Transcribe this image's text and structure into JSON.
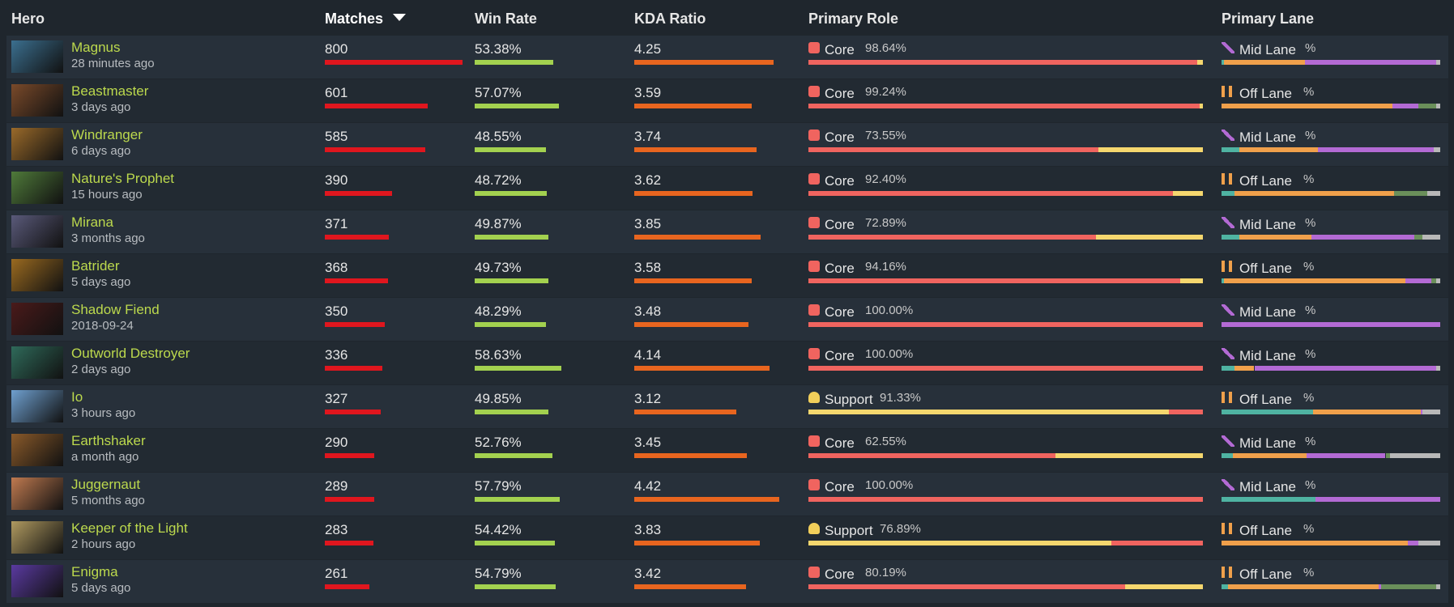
{
  "header": {
    "columns": [
      "Hero",
      "Matches",
      "Win Rate",
      "KDA Ratio",
      "Primary Role",
      "Primary Lane"
    ]
  },
  "rows": [
    {
      "hero": "Magnus",
      "last_played": "28 minutes ago",
      "matches": 800,
      "win_rate": 53.38,
      "win_rate_label": "53.38%",
      "kda": 4.25,
      "role": "Core",
      "role_pct": 98.64,
      "role_pct_label": "98.64%",
      "lane": "Mid Lane",
      "lane_suffix": "%",
      "lane_split": [
        1,
        37,
        60,
        0,
        2
      ]
    },
    {
      "hero": "Beastmaster",
      "last_played": "3 days ago",
      "matches": 601,
      "win_rate": 57.07,
      "win_rate_label": "57.07%",
      "kda": 3.59,
      "role": "Core",
      "role_pct": 99.24,
      "role_pct_label": "99.24%",
      "lane": "Off Lane",
      "lane_suffix": "%",
      "lane_split": [
        0,
        78,
        12,
        8,
        2
      ]
    },
    {
      "hero": "Windranger",
      "last_played": "6 days ago",
      "matches": 585,
      "win_rate": 48.55,
      "win_rate_label": "48.55%",
      "kda": 3.74,
      "role": "Core",
      "role_pct": 73.55,
      "role_pct_label": "73.55%",
      "lane": "Mid Lane",
      "lane_suffix": "%",
      "lane_split": [
        8,
        36,
        53,
        0,
        3
      ]
    },
    {
      "hero": "Nature's Prophet",
      "last_played": "15 hours ago",
      "matches": 390,
      "win_rate": 48.72,
      "win_rate_label": "48.72%",
      "kda": 3.62,
      "role": "Core",
      "role_pct": 92.4,
      "role_pct_label": "92.40%",
      "lane": "Off Lane",
      "lane_suffix": "%",
      "lane_split": [
        6,
        73,
        0,
        15,
        6
      ]
    },
    {
      "hero": "Mirana",
      "last_played": "3 months ago",
      "matches": 371,
      "win_rate": 49.87,
      "win_rate_label": "49.87%",
      "kda": 3.85,
      "role": "Core",
      "role_pct": 72.89,
      "role_pct_label": "72.89%",
      "lane": "Mid Lane",
      "lane_suffix": "%",
      "lane_split": [
        8,
        33,
        47,
        4,
        8
      ]
    },
    {
      "hero": "Batrider",
      "last_played": "5 days ago",
      "matches": 368,
      "win_rate": 49.73,
      "win_rate_label": "49.73%",
      "kda": 3.58,
      "role": "Core",
      "role_pct": 94.16,
      "role_pct_label": "94.16%",
      "lane": "Off Lane",
      "lane_suffix": "%",
      "lane_split": [
        1,
        83,
        12,
        2,
        2
      ]
    },
    {
      "hero": "Shadow Fiend",
      "last_played": "2018-09-24",
      "matches": 350,
      "win_rate": 48.29,
      "win_rate_label": "48.29%",
      "kda": 3.48,
      "role": "Core",
      "role_pct": 100,
      "role_pct_label": "100.00%",
      "lane": "Mid Lane",
      "lane_suffix": "%",
      "lane_split": [
        0,
        0,
        100,
        0,
        0
      ]
    },
    {
      "hero": "Outworld Destroyer",
      "last_played": "2 days ago",
      "matches": 336,
      "win_rate": 58.63,
      "win_rate_label": "58.63%",
      "kda": 4.14,
      "role": "Core",
      "role_pct": 100,
      "role_pct_label": "100.00%",
      "lane": "Mid Lane",
      "lane_suffix": "%",
      "lane_split": [
        6,
        9,
        83,
        0,
        2
      ]
    },
    {
      "hero": "Io",
      "last_played": "3 hours ago",
      "matches": 327,
      "win_rate": 49.85,
      "win_rate_label": "49.85%",
      "kda": 3.12,
      "role": "Support",
      "role_pct": 91.33,
      "role_pct_label": "91.33%",
      "lane": "Off Lane",
      "lane_suffix": "%",
      "lane_split": [
        42,
        49,
        1,
        0,
        8
      ]
    },
    {
      "hero": "Earthshaker",
      "last_played": "a month ago",
      "matches": 290,
      "win_rate": 52.76,
      "win_rate_label": "52.76%",
      "kda": 3.45,
      "role": "Core",
      "role_pct": 62.55,
      "role_pct_label": "62.55%",
      "lane": "Mid Lane",
      "lane_suffix": "%",
      "lane_split": [
        5,
        34,
        36,
        2,
        23
      ]
    },
    {
      "hero": "Juggernaut",
      "last_played": "5 months ago",
      "matches": 289,
      "win_rate": 57.79,
      "win_rate_label": "57.79%",
      "kda": 4.42,
      "role": "Core",
      "role_pct": 100,
      "role_pct_label": "100.00%",
      "lane": "Mid Lane",
      "lane_suffix": "%",
      "lane_split": [
        43,
        0,
        57,
        0,
        0
      ]
    },
    {
      "hero": "Keeper of the Light",
      "last_played": "2 hours ago",
      "matches": 283,
      "win_rate": 54.42,
      "win_rate_label": "54.42%",
      "kda": 3.83,
      "role": "Support",
      "role_pct": 76.89,
      "role_pct_label": "76.89%",
      "lane": "Off Lane",
      "lane_suffix": "%",
      "lane_split": [
        0,
        85,
        5,
        0,
        10
      ]
    },
    {
      "hero": "Enigma",
      "last_played": "5 days ago",
      "matches": 261,
      "win_rate": 54.79,
      "win_rate_label": "54.79%",
      "kda": 3.42,
      "role": "Core",
      "role_pct": 80.19,
      "role_pct_label": "80.19%",
      "lane": "Off Lane",
      "lane_suffix": "%",
      "lane_split": [
        3,
        69,
        1,
        25,
        2
      ]
    }
  ]
}
